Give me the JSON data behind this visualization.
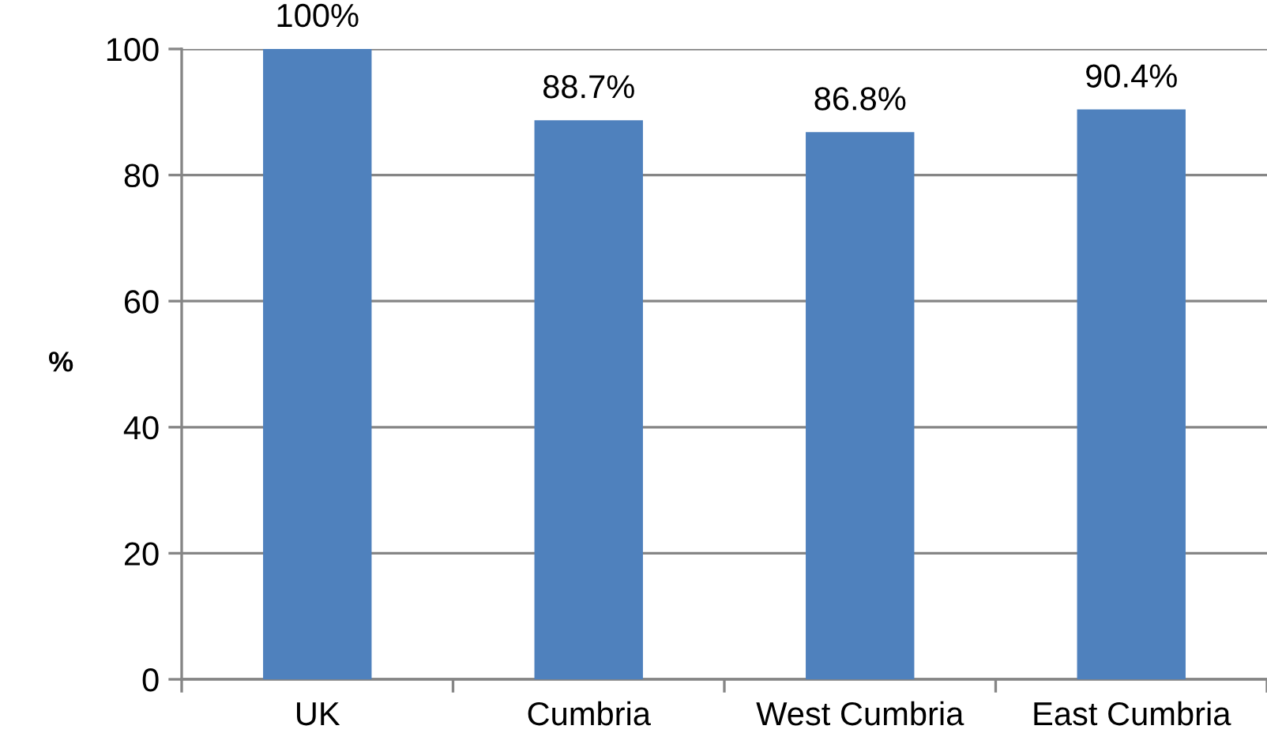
{
  "chart_data": {
    "type": "bar",
    "ylabel": "%",
    "categories": [
      "UK",
      "Cumbria",
      "West Cumbria",
      "East Cumbria"
    ],
    "values": [
      100,
      88.7,
      86.8,
      90.4
    ],
    "value_labels": [
      "100%",
      "88.7%",
      "86.8%",
      "90.4%"
    ],
    "color": "#4f81bd",
    "ylim": [
      0,
      100
    ],
    "yticks": [
      0,
      20,
      40,
      60,
      80,
      100
    ],
    "grid": "y"
  }
}
